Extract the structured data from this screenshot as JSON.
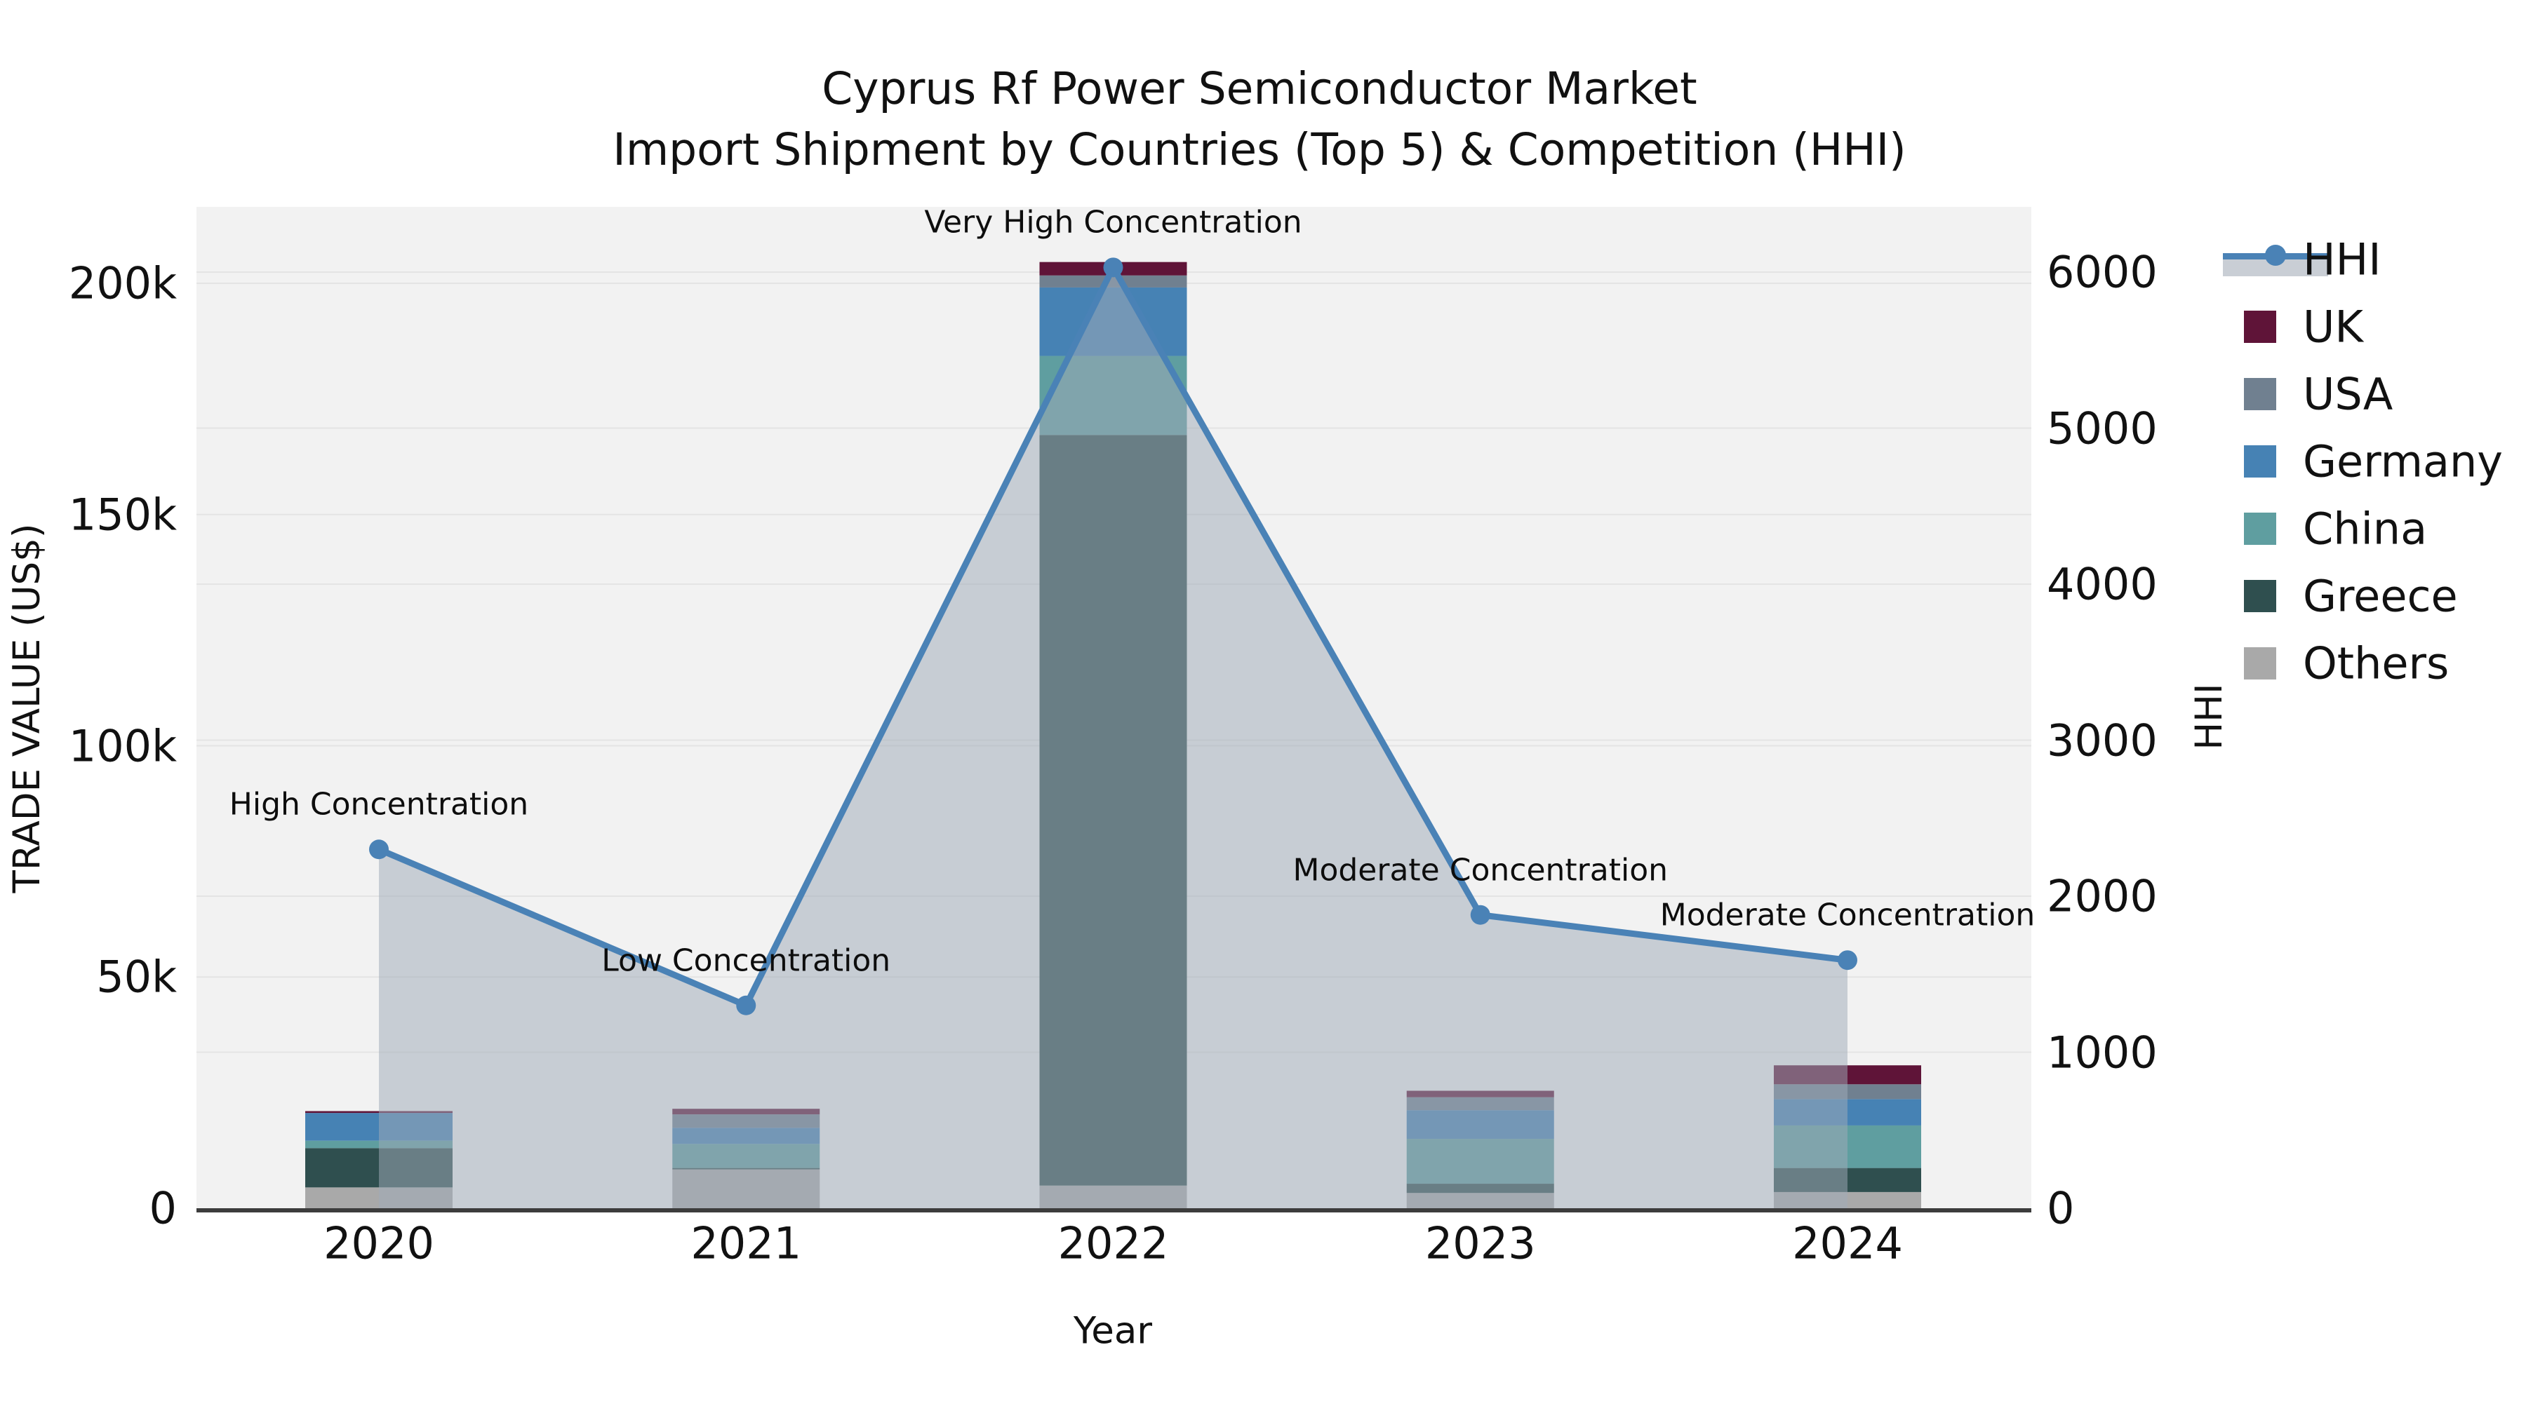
{
  "title": {
    "line1": "Cyprus Rf Power Semiconductor Market",
    "line2": "Import Shipment by Countries (Top 5) & Competition (HHI)"
  },
  "axes": {
    "x_title": "Year",
    "y_left_title": "TRADE VALUE (US$)",
    "y_right_title": "HHI",
    "x_tick_labels": [
      "2020",
      "2021",
      "2022",
      "2023",
      "2024"
    ],
    "y_left_tick_labels": [
      "0",
      "50k",
      "100k",
      "150k",
      "200k"
    ],
    "y_left_tick_values_k": [
      0,
      50,
      100,
      150,
      200
    ],
    "y_right_tick_labels": [
      "0",
      "1000",
      "2000",
      "3000",
      "4000",
      "5000",
      "6000"
    ],
    "y_right_tick_values": [
      0,
      1000,
      2000,
      3000,
      4000,
      5000,
      6000
    ]
  },
  "chart_data": {
    "type": "combo-stacked-bar-and-line",
    "categories": [
      "2020",
      "2021",
      "2022",
      "2023",
      "2024"
    ],
    "bar_unit": "thousand US$",
    "bar_stack_order_bottom_to_top": [
      "Others",
      "Greece",
      "China",
      "Germany",
      "USA",
      "UK"
    ],
    "bar_series": [
      {
        "name": "Others",
        "color": "#a9a9a9",
        "values_k_usd": [
          4.5,
          8.4,
          4.9,
          3.3,
          3.5
        ]
      },
      {
        "name": "Greece",
        "color": "#2f4f4f",
        "values_k_usd": [
          8.5,
          0.3,
          162.3,
          2.0,
          5.2
        ]
      },
      {
        "name": "China",
        "color": "#5f9ea0",
        "values_k_usd": [
          1.6,
          5.2,
          17.1,
          9.7,
          9.2
        ]
      },
      {
        "name": "Germany",
        "color": "#4682b4",
        "values_k_usd": [
          6.0,
          3.5,
          14.8,
          6.2,
          5.7
        ]
      },
      {
        "name": "USA",
        "color": "#708090",
        "values_k_usd": [
          0.0,
          2.9,
          2.6,
          2.8,
          3.2
        ]
      },
      {
        "name": "UK",
        "color": "#5f1438",
        "values_k_usd": [
          0.4,
          1.2,
          2.9,
          1.4,
          4.1
        ]
      }
    ],
    "bar_totals_k_usd": [
      21.0,
      21.5,
      204.6,
      25.4,
      30.9
    ],
    "line_series": {
      "name": "HHI",
      "color": "#4a82b6",
      "area_fill_color": "rgba(160,170,185,0.52)",
      "values": [
        2300,
        1300,
        6030,
        1880,
        1590
      ]
    },
    "annotations": [
      {
        "category": "2020",
        "text": "High Concentration"
      },
      {
        "category": "2021",
        "text": "Low Concentration"
      },
      {
        "category": "2022",
        "text": "Very High Concentration"
      },
      {
        "category": "2023",
        "text": "Moderate Concentration"
      },
      {
        "category": "2024",
        "text": "Moderate Concentration"
      }
    ],
    "ylim_left_k_usd": [
      0,
      210
    ],
    "ylim_right_hhi": [
      0,
      6200
    ],
    "grid": true,
    "legend_position": "right",
    "plot_background_color": "#f2f2f2",
    "gridline_color": "#e4e4e4",
    "axis_line_color": "#3c3c3c"
  },
  "legend": {
    "items": [
      {
        "label": "HHI",
        "type": "line",
        "color": "#4a82b6"
      },
      {
        "label": "UK",
        "type": "square",
        "color": "#5f1438"
      },
      {
        "label": "USA",
        "type": "square",
        "color": "#708090"
      },
      {
        "label": "Germany",
        "type": "square",
        "color": "#4682b4"
      },
      {
        "label": "China",
        "type": "square",
        "color": "#5f9ea0"
      },
      {
        "label": "Greece",
        "type": "square",
        "color": "#2f4f4f"
      },
      {
        "label": "Others",
        "type": "square",
        "color": "#a9a9a9"
      }
    ]
  }
}
